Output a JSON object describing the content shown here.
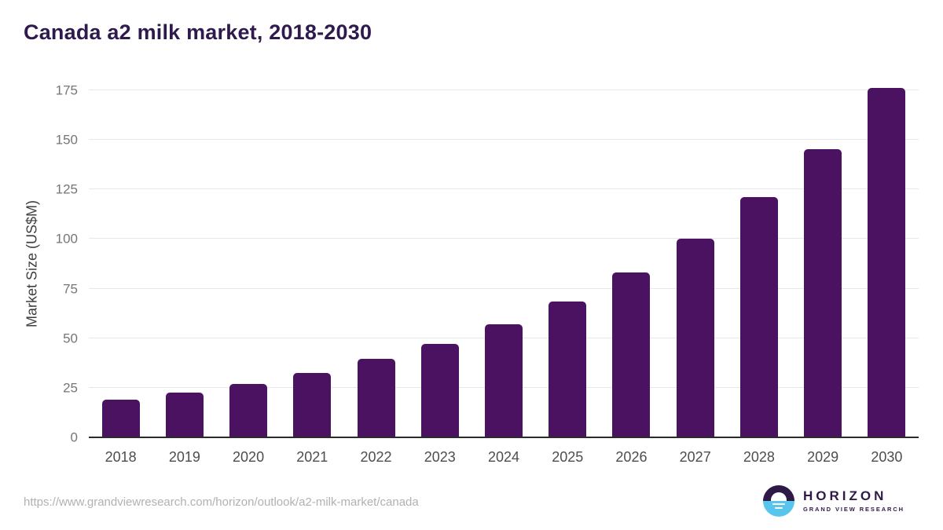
{
  "page": {
    "title": "Canada a2 milk market, 2018-2030",
    "source_url": "https://www.grandviewresearch.com/horizon/outlook/a2-milk-market/canada"
  },
  "logo": {
    "wordmark": "HORIZON",
    "subtitle": "GRAND VIEW RESEARCH",
    "icon": "horizon-sun-circle-icon",
    "circle_top_color": "#2e1a47",
    "circle_bottom_color": "#57c5ec"
  },
  "colors": {
    "bar": "#4a1260",
    "title_text": "#2f1a4e",
    "gridline": "#e8e8e8",
    "axis_line": "#2b2b2b",
    "y_tick_text": "#767676",
    "x_tick_text": "#4d4d4d",
    "url_text": "#b1b1b1",
    "background": "#ffffff"
  },
  "chart_data": {
    "type": "bar",
    "title": "Canada a2 milk market, 2018-2030",
    "categories": [
      "2018",
      "2019",
      "2020",
      "2021",
      "2022",
      "2023",
      "2024",
      "2025",
      "2026",
      "2027",
      "2028",
      "2029",
      "2030"
    ],
    "values": [
      19,
      22.5,
      27,
      32.5,
      39.5,
      47,
      57,
      68.5,
      83,
      100,
      121,
      145.5,
      176
    ],
    "xlabel": "",
    "ylabel": "Market Size (US$M)",
    "ylim": [
      0,
      175
    ],
    "yticks": [
      0,
      25,
      50,
      75,
      100,
      125,
      150,
      175
    ],
    "grid": true,
    "legend": false,
    "bar_color": "#4a1260"
  }
}
